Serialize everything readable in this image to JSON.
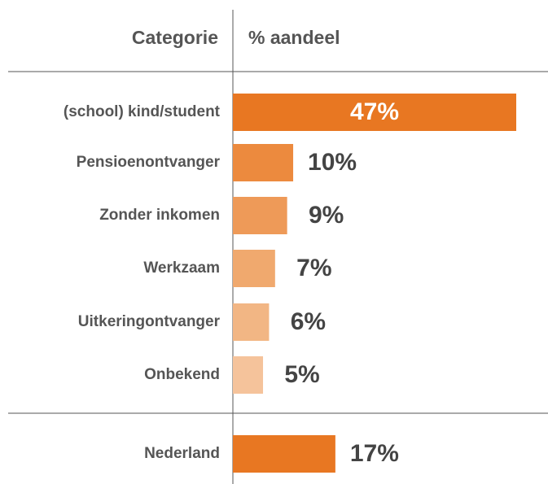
{
  "chart_data": {
    "type": "bar",
    "orientation": "horizontal",
    "column_headers": [
      "Categorie",
      "% aandeel"
    ],
    "categories": [
      "(school) kind/student",
      "Pensioenontvanger",
      "Zonder inkomen",
      "Werkzaam",
      "Uitkeringontvanger",
      "Onbekend",
      "Nederland"
    ],
    "values": [
      47,
      10,
      9,
      7,
      6,
      5,
      17
    ],
    "value_labels": [
      "47%",
      "10%",
      "9%",
      "7%",
      "6%",
      "5%",
      "17%"
    ],
    "colors": [
      "#e87722",
      "#ec8a3e",
      "#ee9a58",
      "#f0a96e",
      "#f2b684",
      "#f5c39b",
      "#e87722"
    ]
  }
}
